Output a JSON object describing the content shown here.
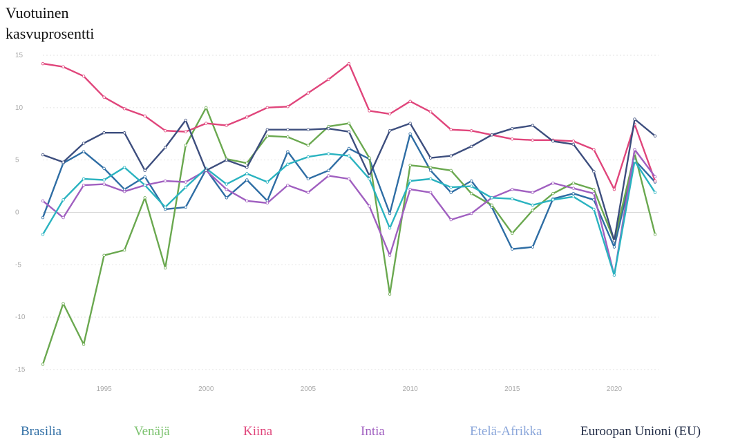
{
  "chart_data": {
    "type": "line",
    "title_lines": [
      "Vuotuinen",
      "kasvuprosentti"
    ],
    "ylim": [
      -15,
      15
    ],
    "y_ticks": [
      15,
      10,
      5,
      0,
      -5,
      -10,
      -15
    ],
    "xlim": [
      1992,
      2023
    ],
    "x_ticks": [
      1995,
      2000,
      2005,
      2010,
      2015,
      2020
    ],
    "grid": true,
    "legend_position": "bottom",
    "x": [
      1992,
      1993,
      1994,
      1995,
      1996,
      1997,
      1998,
      1999,
      2000,
      2001,
      2002,
      2003,
      2004,
      2005,
      2006,
      2007,
      2008,
      2009,
      2010,
      2011,
      2012,
      2013,
      2014,
      2015,
      2016,
      2017,
      2018,
      2019,
      2020,
      2021,
      2022
    ],
    "series": [
      {
        "name": "Brasilia",
        "color": "#2e6da4",
        "values": [
          -0.5,
          4.7,
          5.8,
          4.2,
          2.2,
          3.4,
          0.3,
          0.5,
          4.1,
          1.4,
          3.1,
          1.1,
          5.8,
          3.2,
          4.0,
          6.1,
          5.1,
          -0.1,
          7.5,
          4.0,
          1.9,
          3.0,
          0.5,
          -3.5,
          -3.3,
          1.3,
          1.8,
          1.2,
          -3.3,
          5.0,
          2.9
        ]
      },
      {
        "name": "Venäjä",
        "color": "#6aa84f",
        "values": [
          -14.5,
          -8.7,
          -12.6,
          -4.1,
          -3.6,
          1.4,
          -5.3,
          6.4,
          10.0,
          5.1,
          4.7,
          7.3,
          7.2,
          6.4,
          8.2,
          8.5,
          5.2,
          -7.8,
          4.5,
          4.3,
          4.0,
          1.8,
          0.7,
          -2.0,
          0.2,
          1.8,
          2.8,
          2.2,
          -2.7,
          5.6,
          -2.1
        ]
      },
      {
        "name": "Kiina",
        "color": "#e0457b",
        "values": [
          14.2,
          13.9,
          13.0,
          11.0,
          9.9,
          9.2,
          7.8,
          7.7,
          8.5,
          8.3,
          9.1,
          10.0,
          10.1,
          11.4,
          12.7,
          14.2,
          9.7,
          9.4,
          10.6,
          9.6,
          7.9,
          7.8,
          7.4,
          7.0,
          6.9,
          6.9,
          6.8,
          6.0,
          2.2,
          8.4,
          3.0
        ]
      },
      {
        "name": "Intia",
        "color": "#a05fc0",
        "values": [
          1.1,
          -0.5,
          2.6,
          2.7,
          2.0,
          2.6,
          3.0,
          2.9,
          4.0,
          2.2,
          1.1,
          0.9,
          2.6,
          1.9,
          3.5,
          3.2,
          0.6,
          -4.1,
          2.2,
          1.9,
          -0.7,
          -0.1,
          1.4,
          2.2,
          1.9,
          2.8,
          2.3,
          1.8,
          -6.0,
          6.0,
          3.4
        ]
      },
      {
        "name": "Etelä-Afrikka",
        "color": "#2ab3c0",
        "values": [
          -2.1,
          1.2,
          3.2,
          3.1,
          4.3,
          2.6,
          0.5,
          2.4,
          4.2,
          2.7,
          3.7,
          2.9,
          4.6,
          5.3,
          5.6,
          5.4,
          3.2,
          -1.5,
          3.0,
          3.2,
          2.4,
          2.5,
          1.4,
          1.3,
          0.7,
          1.2,
          1.5,
          0.3,
          -6.0,
          4.9,
          1.9
        ]
      },
      {
        "name": "Euroopan Unioni (EU)",
        "color": "#3d4e7e",
        "values": [
          5.5,
          4.8,
          6.6,
          7.6,
          7.6,
          4.0,
          6.2,
          8.8,
          4.0,
          5.0,
          4.3,
          7.9,
          7.9,
          7.9,
          8.0,
          7.7,
          3.5,
          7.8,
          8.5,
          5.2,
          5.4,
          6.3,
          7.4,
          8.0,
          8.3,
          6.8,
          6.5,
          3.9,
          -2.7,
          8.9,
          7.3
        ]
      }
    ],
    "legend_colors": [
      "#2e6da4",
      "#7cc26f",
      "#e0457b",
      "#a05fc0",
      "#8aa6da",
      "#1f2a44"
    ]
  }
}
